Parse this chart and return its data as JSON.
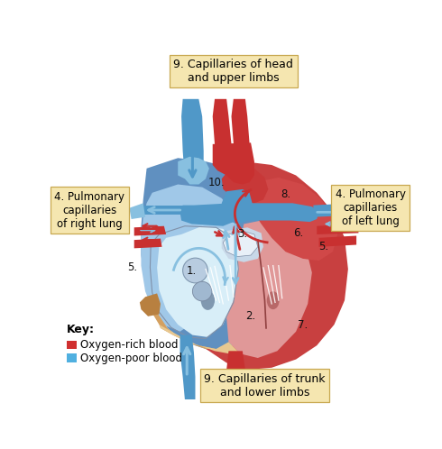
{
  "bg_color": "#ffffff",
  "label_box_color": "#f5e6b0",
  "label_box_edge": "#c8a850",
  "title_top": "9. Capillaries of head\nand upper limbs",
  "title_bottom": "9. Capillaries of trunk\nand lower limbs",
  "label_left": "4. Pulmonary\ncapillaries\nof right lung",
  "label_right": "4. Pulmonary\ncapillaries\nof left lung",
  "key_title": "Key:",
  "key_red_label": "Oxygen-rich blood",
  "key_blue_label": "Oxygen-poor blood",
  "key_red_color": "#d03030",
  "key_blue_color": "#50b0e0",
  "red": "#c83030",
  "red_light": "#e07070",
  "red_bright": "#e03030",
  "red_aorta": "#c03030",
  "blue_vessel": "#5098c8",
  "blue_light": "#88c0e0",
  "blue_pale": "#b0d8f0",
  "blue_dark": "#3878a8",
  "heart_red_body": "#c84040",
  "heart_blue_body": "#6090c0",
  "rv_interior": "#a0c8e8",
  "lv_interior": "#e09898",
  "tan": "#d4a060",
  "tan_light": "#e8c890"
}
